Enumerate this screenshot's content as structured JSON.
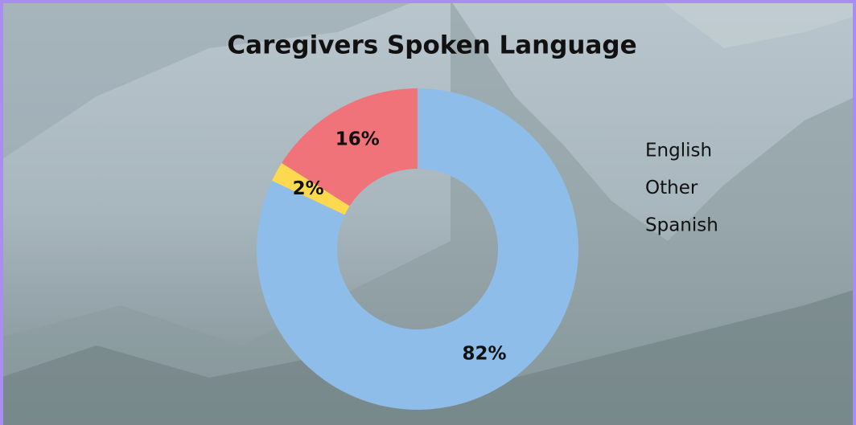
{
  "chart_data": {
    "type": "donut",
    "title": "Caregivers Spoken Language",
    "categories": [
      "English",
      "Other",
      "Spanish"
    ],
    "values": [
      82,
      2,
      16
    ],
    "value_labels": [
      "82%",
      "2%",
      "16%"
    ],
    "colors": [
      "#8fbde9",
      "#fcd94f",
      "#f0737a"
    ],
    "legend": "right"
  }
}
